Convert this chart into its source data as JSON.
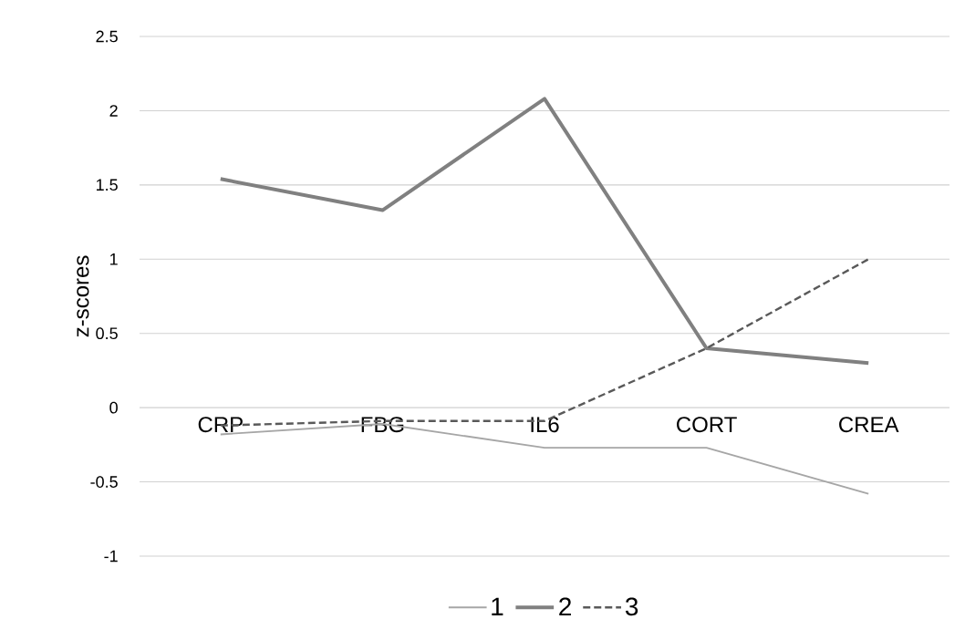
{
  "chart_data": {
    "type": "line",
    "ylabel": "z-scores",
    "categories": [
      "CRP",
      "FBG",
      "IL6",
      "CORT",
      "CREA"
    ],
    "series": [
      {
        "name": "1",
        "color": "#a6a6a6",
        "line_style": "solid",
        "values": [
          -0.18,
          -0.11,
          -0.27,
          -0.27,
          -0.58
        ]
      },
      {
        "name": "2",
        "color": "#808080",
        "line_style": "solid",
        "values": [
          1.54,
          1.33,
          2.08,
          0.4,
          0.3
        ]
      },
      {
        "name": "3",
        "color": "#595959",
        "line_style": "dashed",
        "values": [
          -0.12,
          -0.09,
          -0.09,
          0.4,
          1.0
        ]
      }
    ],
    "ylim": [
      -1,
      2.5
    ],
    "yticks": [
      -1,
      -0.5,
      0,
      0.5,
      1,
      1.5,
      2,
      2.5
    ],
    "grid": "y",
    "legend": "bottom",
    "marker": "none"
  }
}
